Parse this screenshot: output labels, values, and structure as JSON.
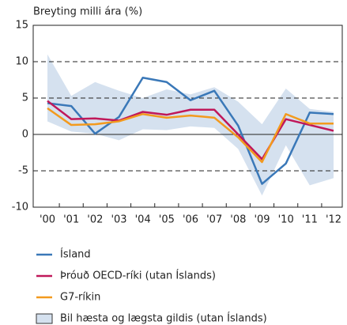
{
  "chart_data": {
    "type": "line",
    "y_label": "Breyting milli ára (%)",
    "categories": [
      "'00",
      "'01",
      "'02",
      "'03",
      "'04",
      "'05",
      "'06",
      "'07",
      "'08",
      "'09",
      "'10",
      "'11",
      "'12"
    ],
    "series": [
      {
        "name": "Ísland",
        "color": "#3a78b8",
        "values": [
          4.3,
          3.9,
          0.1,
          2.4,
          7.8,
          7.2,
          4.7,
          6.0,
          1.2,
          -6.8,
          -4.0,
          3.0,
          2.8
        ]
      },
      {
        "name": "Þróuð OECD-ríki (utan Íslands)",
        "color": "#c0185a",
        "values": [
          4.6,
          2.1,
          2.2,
          1.9,
          3.1,
          2.7,
          3.4,
          3.4,
          0.0,
          -3.4,
          2.1,
          1.3,
          0.5
        ]
      },
      {
        "name": "G7-ríkin",
        "color": "#f39a1e",
        "values": [
          3.6,
          1.3,
          1.4,
          1.8,
          2.8,
          2.3,
          2.6,
          2.3,
          -0.4,
          -3.8,
          2.8,
          1.5,
          1.5
        ]
      }
    ],
    "band": {
      "name": "Bil hæsta og lægsta gildis (utan Íslands)",
      "color": "#d5e1ef",
      "high": [
        11.0,
        5.3,
        7.2,
        6.0,
        5.0,
        6.2,
        5.5,
        6.5,
        4.5,
        1.4,
        6.3,
        3.5,
        3.1
      ],
      "low": [
        1.8,
        0.4,
        0.1,
        -0.8,
        0.7,
        0.6,
        1.1,
        0.9,
        -2.0,
        -8.4,
        -1.5,
        -7.0,
        -6.0
      ]
    },
    "ylim": [
      -10,
      15
    ],
    "yticks": [
      -10,
      -5,
      0,
      5,
      10,
      15
    ],
    "grid": true
  }
}
